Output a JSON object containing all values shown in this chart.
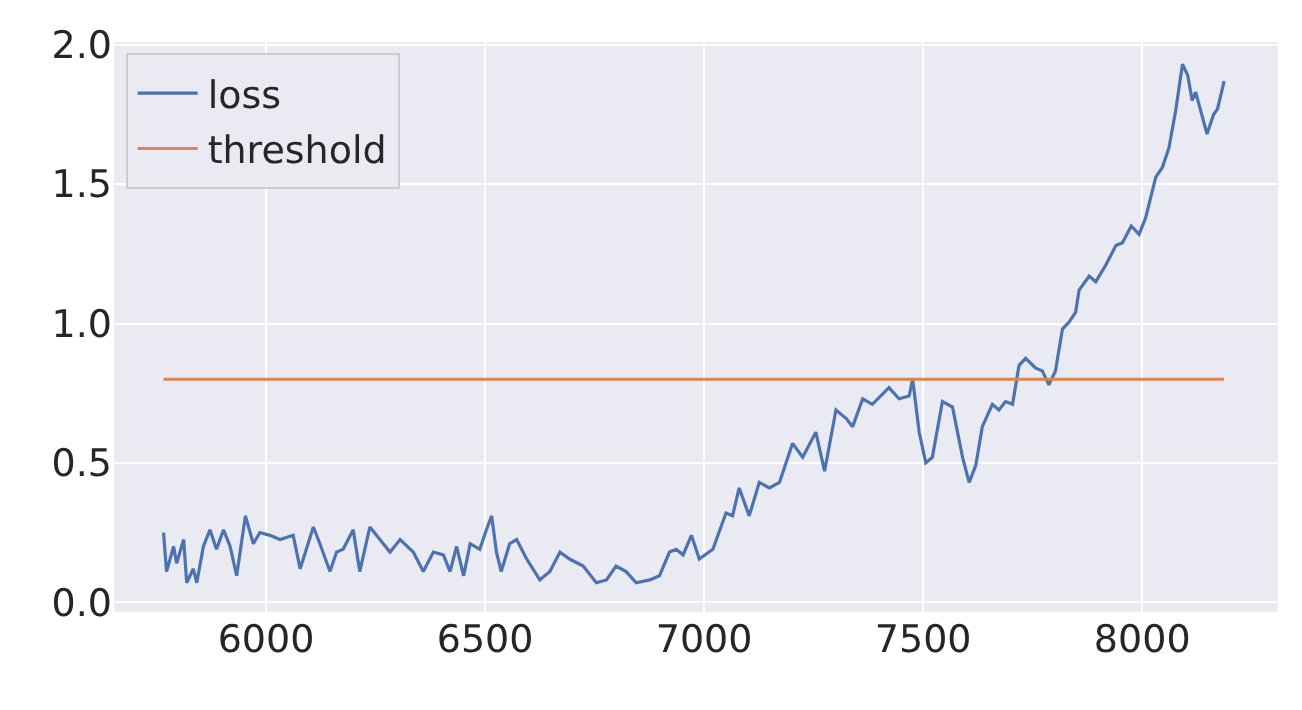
{
  "chart_data": {
    "type": "line",
    "xlim": [
      5653,
      8310
    ],
    "ylim": [
      -0.035,
      2.01
    ],
    "xticks": [
      6000,
      6500,
      7000,
      7500,
      8000
    ],
    "yticks": [
      {
        "value": 0,
        "label": "0.0"
      },
      {
        "value": 0.5,
        "label": "0.5"
      },
      {
        "value": 1,
        "label": "1.0"
      },
      {
        "value": 1.5,
        "label": "1.5"
      },
      {
        "value": 2,
        "label": "2.0"
      }
    ],
    "grid": true,
    "legend": "top left",
    "marker": "none",
    "line_style": "solid",
    "series": [
      {
        "name": "loss",
        "color": "#4c72b0",
        "x": [
          5766,
          5773,
          5789,
          5796,
          5812,
          5819,
          5834,
          5842,
          5857,
          5872,
          5887,
          5903,
          5918,
          5933,
          5953,
          5971,
          5986,
          6009,
          6032,
          6062,
          6078,
          6108,
          6123,
          6146,
          6161,
          6176,
          6199,
          6214,
          6237,
          6260,
          6283,
          6306,
          6336,
          6359,
          6382,
          6405,
          6420,
          6435,
          6451,
          6466,
          6488,
          6503,
          6515,
          6526,
          6537,
          6556,
          6572,
          6595,
          6625,
          6648,
          6671,
          6693,
          6724,
          6754,
          6777,
          6799,
          6822,
          6845,
          6876,
          6898,
          6921,
          6936,
          6952,
          6971,
          6989,
          7020,
          7050,
          7065,
          7080,
          7103,
          7126,
          7149,
          7172,
          7202,
          7225,
          7255,
          7275,
          7301,
          7324,
          7339,
          7362,
          7384,
          7422,
          7445,
          7468,
          7476,
          7491,
          7506,
          7521,
          7544,
          7567,
          7590,
          7605,
          7620,
          7635,
          7658,
          7673,
          7688,
          7704,
          7719,
          7734,
          7757,
          7772,
          7787,
          7802,
          7818,
          7833,
          7848,
          7856,
          7879,
          7894,
          7917,
          7940,
          7955,
          7975,
          7993,
          8008,
          8031,
          8046,
          8061,
          8076,
          8092,
          8104,
          8114,
          8122,
          8148,
          8163,
          8172,
          8187
        ],
        "values": [
          0.25,
          0.11,
          0.2,
          0.14,
          0.225,
          0.07,
          0.12,
          0.07,
          0.2,
          0.26,
          0.19,
          0.26,
          0.2,
          0.095,
          0.31,
          0.21,
          0.25,
          0.24,
          0.225,
          0.24,
          0.12,
          0.27,
          0.21,
          0.11,
          0.18,
          0.19,
          0.26,
          0.11,
          0.27,
          0.225,
          0.18,
          0.225,
          0.18,
          0.11,
          0.18,
          0.17,
          0.11,
          0.2,
          0.095,
          0.21,
          0.19,
          0.26,
          0.31,
          0.18,
          0.11,
          0.21,
          0.225,
          0.155,
          0.08,
          0.11,
          0.18,
          0.155,
          0.13,
          0.07,
          0.08,
          0.13,
          0.11,
          0.07,
          0.08,
          0.095,
          0.18,
          0.19,
          0.17,
          0.24,
          0.155,
          0.19,
          0.32,
          0.31,
          0.41,
          0.31,
          0.43,
          0.41,
          0.43,
          0.57,
          0.52,
          0.61,
          0.47,
          0.69,
          0.66,
          0.63,
          0.73,
          0.71,
          0.77,
          0.73,
          0.74,
          0.8,
          0.61,
          0.5,
          0.52,
          0.72,
          0.7,
          0.52,
          0.43,
          0.49,
          0.63,
          0.71,
          0.69,
          0.72,
          0.71,
          0.85,
          0.875,
          0.84,
          0.83,
          0.78,
          0.83,
          0.98,
          1.005,
          1.04,
          1.12,
          1.17,
          1.15,
          1.21,
          1.28,
          1.29,
          1.35,
          1.32,
          1.38,
          1.525,
          1.56,
          1.63,
          1.76,
          1.93,
          1.89,
          1.8,
          1.83,
          1.68,
          1.75,
          1.77,
          1.87
        ]
      },
      {
        "name": "threshold",
        "color": "#dd8452",
        "x": [
          5766,
          8187
        ],
        "values": [
          0.8,
          0.8
        ]
      }
    ]
  }
}
